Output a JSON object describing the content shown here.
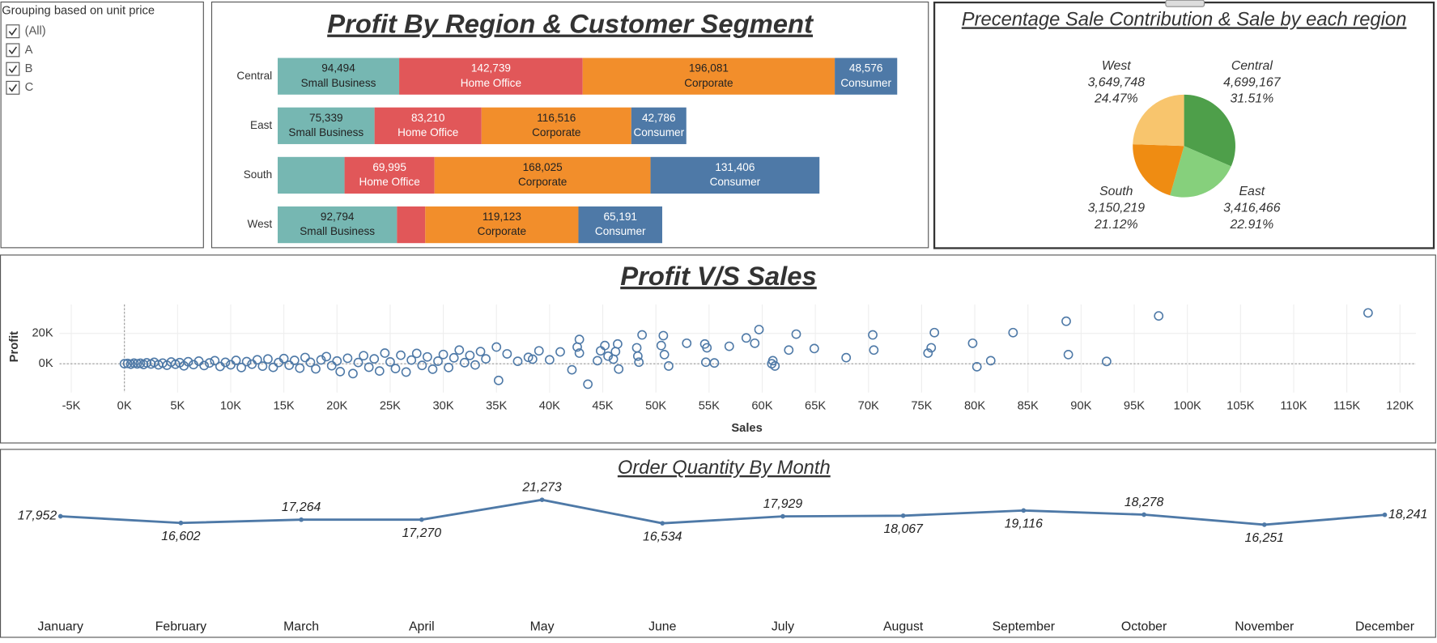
{
  "filter": {
    "title": "Grouping based on unit price",
    "items": [
      "(All)",
      "A",
      "B",
      "C"
    ]
  },
  "chart_data": [
    {
      "type": "bar",
      "orientation": "horizontal",
      "stacked": true,
      "title": "Profit By Region & Customer Segment",
      "categories": [
        "Central",
        "East",
        "South",
        "West"
      ],
      "series": [
        {
          "name": "Small Business",
          "color": "#76b7b2",
          "values": [
            94494,
            75339,
            52000,
            92794
          ],
          "value_labels": [
            "94,494",
            "75,339",
            null,
            "92,794"
          ]
        },
        {
          "name": "Home Office",
          "color": "#e15759",
          "values": [
            142739,
            83210,
            69995,
            22000
          ],
          "value_labels": [
            "142,739",
            "83,210",
            "69,995",
            null
          ]
        },
        {
          "name": "Corporate",
          "color": "#f28e2b",
          "values": [
            196081,
            116516,
            168025,
            119123
          ],
          "value_labels": [
            "196,081",
            "116,516",
            "168,025",
            "119,123"
          ]
        },
        {
          "name": "Consumer",
          "color": "#4e79a7",
          "values": [
            48576,
            42786,
            131406,
            65191
          ],
          "value_labels": [
            "48,576",
            "42,786",
            "131,406",
            "65,191"
          ]
        }
      ]
    },
    {
      "type": "pie",
      "title": "Precentage Sale Contribution & Sale by each region",
      "categories": [
        "Central",
        "East",
        "South",
        "West"
      ],
      "values": [
        4699167,
        3416466,
        3150219,
        3649748
      ],
      "value_labels": [
        "4,699,167",
        "3,416,466",
        "3,150,219",
        "3,649,748"
      ],
      "percentages": [
        31.51,
        22.91,
        21.12,
        24.47
      ],
      "percentage_labels": [
        "31.51%",
        "22.91%",
        "21.12%",
        "24.47%"
      ],
      "colors": [
        "#4e9f4a",
        "#86d07c",
        "#ef8c12",
        "#f8c56d"
      ]
    },
    {
      "type": "scatter",
      "title": "Profit V/S Sales",
      "x_label": "Sales",
      "y_label": "Profit",
      "color": "#4e79a7",
      "grid": true,
      "xlim": [
        -6100,
        121500
      ],
      "ylim": [
        -19000,
        39000
      ],
      "xticks": [
        {
          "value": -5000,
          "label": "-5K"
        },
        {
          "value": 0,
          "label": "0K"
        },
        {
          "value": 5000,
          "label": "5K"
        },
        {
          "value": 10000,
          "label": "10K"
        },
        {
          "value": 15000,
          "label": "15K"
        },
        {
          "value": 20000,
          "label": "20K"
        },
        {
          "value": 25000,
          "label": "25K"
        },
        {
          "value": 30000,
          "label": "30K"
        },
        {
          "value": 35000,
          "label": "35K"
        },
        {
          "value": 40000,
          "label": "40K"
        },
        {
          "value": 45000,
          "label": "45K"
        },
        {
          "value": 50000,
          "label": "50K"
        },
        {
          "value": 55000,
          "label": "55K"
        },
        {
          "value": 60000,
          "label": "60K"
        },
        {
          "value": 65000,
          "label": "65K"
        },
        {
          "value": 70000,
          "label": "70K"
        },
        {
          "value": 75000,
          "label": "75K"
        },
        {
          "value": 80000,
          "label": "80K"
        },
        {
          "value": 85000,
          "label": "85K"
        },
        {
          "value": 90000,
          "label": "90K"
        },
        {
          "value": 95000,
          "label": "95K"
        },
        {
          "value": 100000,
          "label": "100K"
        },
        {
          "value": 105000,
          "label": "105K"
        },
        {
          "value": 110000,
          "label": "110K"
        },
        {
          "value": 115000,
          "label": "115K"
        },
        {
          "value": 120000,
          "label": "120K"
        }
      ],
      "yticks": [
        {
          "value": 0,
          "label": "0K"
        },
        {
          "value": 20000,
          "label": "20K"
        }
      ],
      "x": [
        0,
        300,
        600,
        900,
        1200,
        1500,
        1800,
        2100,
        2500,
        2800,
        3200,
        3600,
        4000,
        4400,
        4800,
        5200,
        5600,
        6000,
        6500,
        7000,
        7500,
        8000,
        8500,
        9000,
        9500,
        10000,
        10500,
        11000,
        11500,
        12000,
        12500,
        13000,
        13500,
        14000,
        14500,
        15000,
        15500,
        16000,
        16500,
        17000,
        17500,
        18000,
        18500,
        19000,
        19500,
        20000,
        20300,
        21000,
        21500,
        22000,
        22500,
        23000,
        23500,
        24000,
        24500,
        25000,
        25500,
        26000,
        26500,
        27000,
        27500,
        28000,
        28500,
        29000,
        29500,
        30000,
        30500,
        31000,
        31500,
        32000,
        32500,
        33000,
        33500,
        34000,
        35000,
        36000,
        37000,
        38000,
        39000,
        40000,
        41000,
        35200,
        38400,
        42100,
        42600,
        42800,
        42800,
        43600,
        44500,
        44800,
        45200,
        45500,
        46000,
        46200,
        46400,
        46500,
        48200,
        48300,
        48400,
        48700,
        50500,
        50700,
        50800,
        51200,
        52900,
        54600,
        54700,
        54800,
        55500,
        56900,
        58500,
        59300,
        59700,
        60900,
        61000,
        61200,
        62500,
        63200,
        64900,
        67900,
        70400,
        70500,
        75600,
        75900,
        76200,
        79800,
        80200,
        81500,
        83600,
        88600,
        88800,
        92400,
        97300,
        117000
      ],
      "values": [
        0,
        200,
        -300,
        400,
        -100,
        300,
        -500,
        600,
        -200,
        900,
        -700,
        400,
        -1000,
        1100,
        -300,
        700,
        -1400,
        1300,
        -600,
        1700,
        -1200,
        500,
        2000,
        -1800,
        900,
        -700,
        2200,
        -2500,
        1400,
        -300,
        2600,
        -1600,
        3100,
        -2400,
        800,
        3400,
        -1000,
        2200,
        -2900,
        4100,
        900,
        -3400,
        2500,
        4700,
        -1300,
        1800,
        -5200,
        3600,
        -6500,
        800,
        5300,
        -2300,
        3200,
        -4800,
        7000,
        1200,
        -3200,
        5600,
        -5500,
        2400,
        6800,
        -1100,
        4500,
        -3600,
        1700,
        6100,
        -2500,
        3900,
        9000,
        700,
        5500,
        -800,
        8000,
        3200,
        11000,
        6500,
        1600,
        4200,
        8500,
        2600,
        7800,
        -11000,
        3000,
        -4000,
        11000,
        7000,
        16000,
        -13500,
        2000,
        8500,
        12000,
        5000,
        3000,
        8000,
        13000,
        -3500,
        10500,
        5000,
        1000,
        19000,
        12000,
        18500,
        6000,
        -1500,
        13500,
        13000,
        1000,
        10500,
        500,
        11500,
        17000,
        13500,
        22500,
        0,
        2000,
        -1500,
        9000,
        19500,
        10000,
        4000,
        19000,
        9000,
        7000,
        10500,
        20500,
        13500,
        -2000,
        2000,
        20500,
        28000,
        6000,
        1500,
        31500,
        33500
      ]
    },
    {
      "type": "line",
      "title": "Order Quantity By Month",
      "color": "#4e79a7",
      "categories": [
        "January",
        "February",
        "March",
        "April",
        "May",
        "June",
        "July",
        "August",
        "September",
        "October",
        "November",
        "December"
      ],
      "values": [
        17952,
        16602,
        17264,
        17270,
        21273,
        16534,
        17929,
        18067,
        19116,
        18278,
        16251,
        18241
      ],
      "value_labels": [
        "17,952",
        "16,602",
        "17,264",
        "17,270",
        "21,273",
        "16,534",
        "17,929",
        "18,067",
        "19,116",
        "18,278",
        "16,251",
        "18,241"
      ]
    }
  ]
}
